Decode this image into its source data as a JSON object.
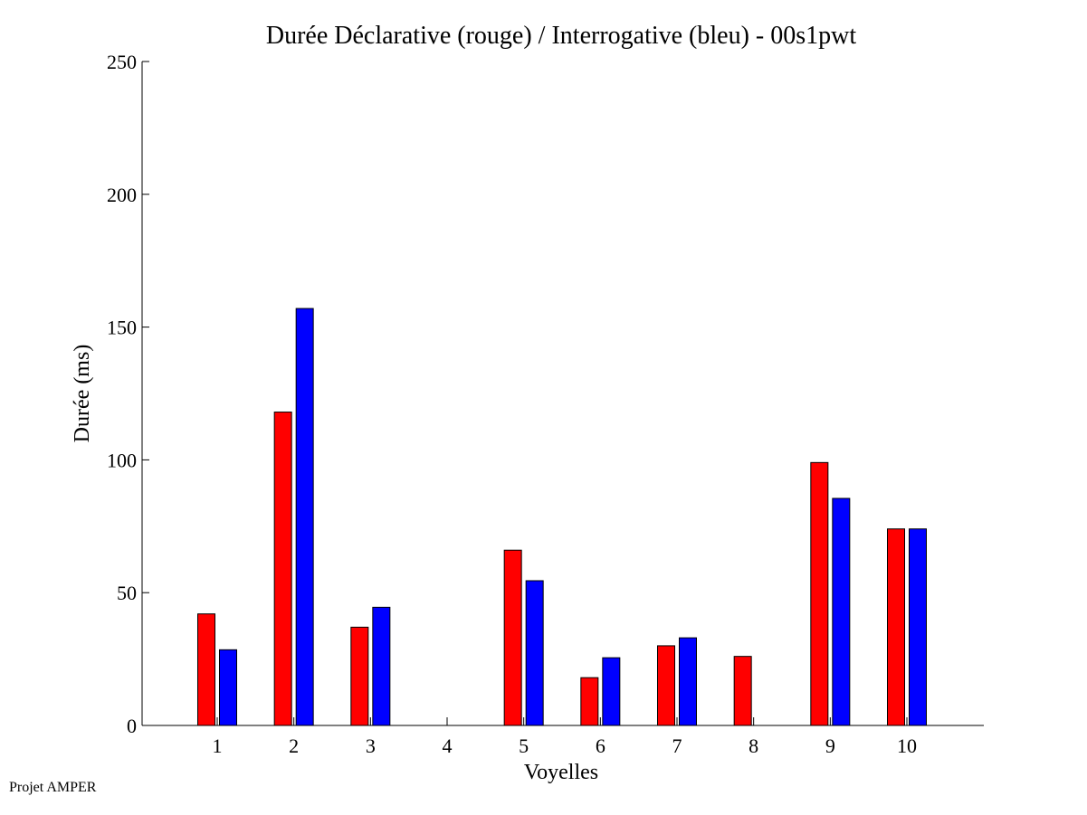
{
  "chart_data": {
    "type": "bar",
    "title": "Durée Déclarative (rouge) / Interrogative (bleu) - 00s1pwt",
    "xlabel": "Voyelles",
    "ylabel": "Durée (ms)",
    "ylim": [
      0,
      250
    ],
    "yticks": [
      0,
      50,
      100,
      150,
      200,
      250
    ],
    "categories": [
      "1",
      "2",
      "3",
      "4",
      "5",
      "6",
      "7",
      "8",
      "9",
      "10"
    ],
    "series": [
      {
        "color": "#ff0000",
        "values": [
          42,
          118,
          37,
          0,
          66,
          18,
          30,
          26,
          99,
          74
        ]
      },
      {
        "color": "#0000ff",
        "values": [
          28.5,
          157,
          44.5,
          0,
          54.5,
          25.5,
          33,
          0,
          85.5,
          74
        ]
      }
    ],
    "grid": false,
    "legend": "none"
  },
  "footer": {
    "note": "Projet AMPER"
  }
}
